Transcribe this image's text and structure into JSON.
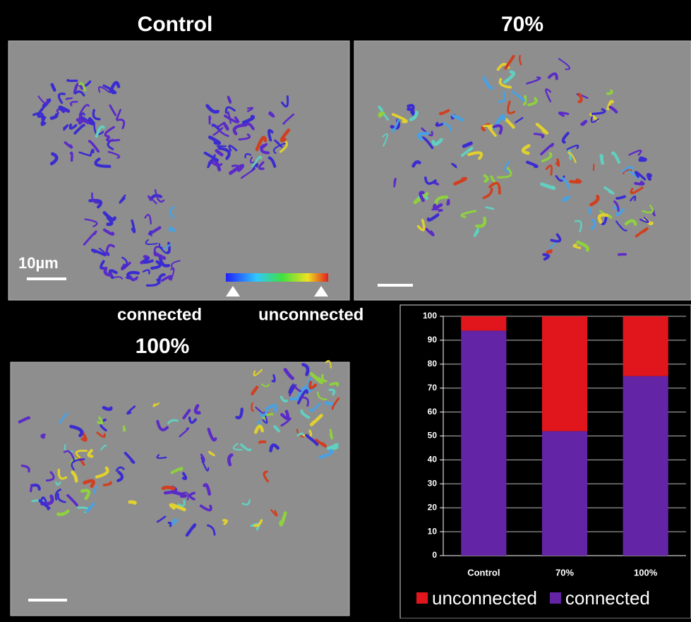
{
  "figure": {
    "panels": [
      "Control",
      "70%",
      "100%"
    ],
    "scale_bar": "10µm",
    "colorbar_low": "connected",
    "colorbar_high": "unconnected"
  },
  "chart_data": {
    "type": "stacked_bar",
    "categories": [
      "Control",
      "70%",
      "100%"
    ],
    "series": [
      {
        "name": "unconnected",
        "color": "#e0161c",
        "values": [
          6,
          48,
          25
        ]
      },
      {
        "name": "connected",
        "color": "#6424a6",
        "values": [
          94,
          52,
          75
        ]
      }
    ],
    "ylim": [
      0,
      100
    ],
    "yticks": [
      0,
      10,
      20,
      30,
      40,
      50,
      60,
      70,
      80,
      90,
      100
    ],
    "grid": true,
    "legend": "bottom"
  }
}
